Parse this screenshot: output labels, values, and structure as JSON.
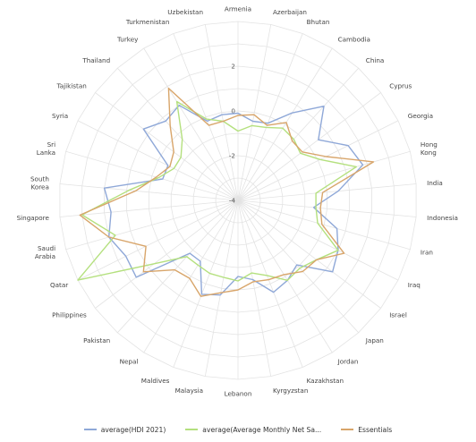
{
  "chart_data": {
    "type": "radar",
    "categories": [
      "Armenia",
      "Azerbaijan",
      "Bhutan",
      "Cambodia",
      "China",
      "Cyprus",
      "Georgia",
      "Hong Kong",
      "India",
      "Indonesia",
      "Iran",
      "Iraq",
      "Israel",
      "Japan",
      "Jordan",
      "Kazakhstan",
      "Kyrgyzstan",
      "Lebanon",
      "Malaysia",
      "Maldives",
      "Nepal",
      "Pakistan",
      "Philippines",
      "Qatar",
      "Saudi Arabia",
      "Singapore",
      "South Korea",
      "Sri Lanka",
      "Syria",
      "Tajikistan",
      "Thailand",
      "Turkey",
      "Turkmenistan",
      "Uzbekistan"
    ],
    "category_display": [
      [
        "Armenia"
      ],
      [
        "Azerbaijan"
      ],
      [
        "Bhutan"
      ],
      [
        "Cambodia"
      ],
      [
        "China"
      ],
      [
        "Cyprus"
      ],
      [
        "Georgia"
      ],
      [
        "Hong",
        "Kong"
      ],
      [
        "India"
      ],
      [
        "Indonesia"
      ],
      [
        "Iran"
      ],
      [
        "Iraq"
      ],
      [
        "Israel"
      ],
      [
        "Japan"
      ],
      [
        "Jordan"
      ],
      [
        "Kazakhstan"
      ],
      [
        "Kyrgyzstan"
      ],
      [
        "Lebanon"
      ],
      [
        "Malaysia"
      ],
      [
        "Maldives"
      ],
      [
        "Nepal"
      ],
      [
        "Pakistan"
      ],
      [
        "Philippines"
      ],
      [
        "Qatar"
      ],
      [
        "Saudi",
        "Arabia"
      ],
      [
        "Singapore"
      ],
      [
        "South",
        "Korea"
      ],
      [
        "Sri",
        "Lanka"
      ],
      [
        "Syria"
      ],
      [
        "Tajikistan"
      ],
      [
        "Thailand"
      ],
      [
        "Turkey"
      ],
      [
        "Turkmenistan"
      ],
      [
        "Uzbekistan"
      ]
    ],
    "radial_range": [
      -4,
      4
    ],
    "ticks": [
      -4,
      -2,
      0,
      2
    ],
    "grid": true,
    "legend_position": "bottom",
    "series": [
      {
        "name": "average(HDI 2021)",
        "color": "#8fa8d8",
        "values": [
          -0.1,
          -0.4,
          -0.3,
          0.6,
          1.7,
          0.5,
          1.5,
          1.8,
          0.5,
          -0.6,
          0.6,
          1.0,
          1.3,
          -0.1,
          0.2,
          0.4,
          -0.4,
          -0.6,
          0.3,
          0.5,
          -0.8,
          -0.8,
          1.7,
          1.6,
          2.0,
          1.7,
          2.0,
          -0.5,
          -0.5,
          1.3,
          0.8,
          1.0,
          -0.2,
          -0.1
        ]
      },
      {
        "name": "average(Average Monthly Net Sa...",
        "color": "#b4e07e",
        "values": [
          -0.9,
          -0.6,
          -0.5,
          -0.2,
          -0.3,
          -0.5,
          0.1,
          1.5,
          -0.5,
          -0.5,
          -0.3,
          1.0,
          0.4,
          0.1,
          0.2,
          -0.4,
          -0.7,
          -0.4,
          -0.5,
          -0.5,
          -0.6,
          -0.6,
          0.7,
          5.0,
          1.7,
          3.0,
          0.9,
          -0.3,
          -0.8,
          -0.8,
          -0.3,
          1.2,
          -0.1,
          -0.4
        ]
      },
      {
        "name": "Essentials",
        "color": "#d8a56a",
        "values": [
          -0.2,
          -0.1,
          -0.4,
          0.1,
          -0.4,
          -0.4,
          0.4,
          2.3,
          -0.2,
          -0.3,
          -0.1,
          1.3,
          0.4,
          0.3,
          -0.1,
          -0.2,
          -0.3,
          0.0,
          0.2,
          0.6,
          0.1,
          0.2,
          1.3,
          0.6,
          2.0,
          3.1,
          0.6,
          -0.2,
          -0.6,
          -0.4,
          0.5,
          1.9,
          -0.4,
          -0.4
        ]
      }
    ]
  }
}
